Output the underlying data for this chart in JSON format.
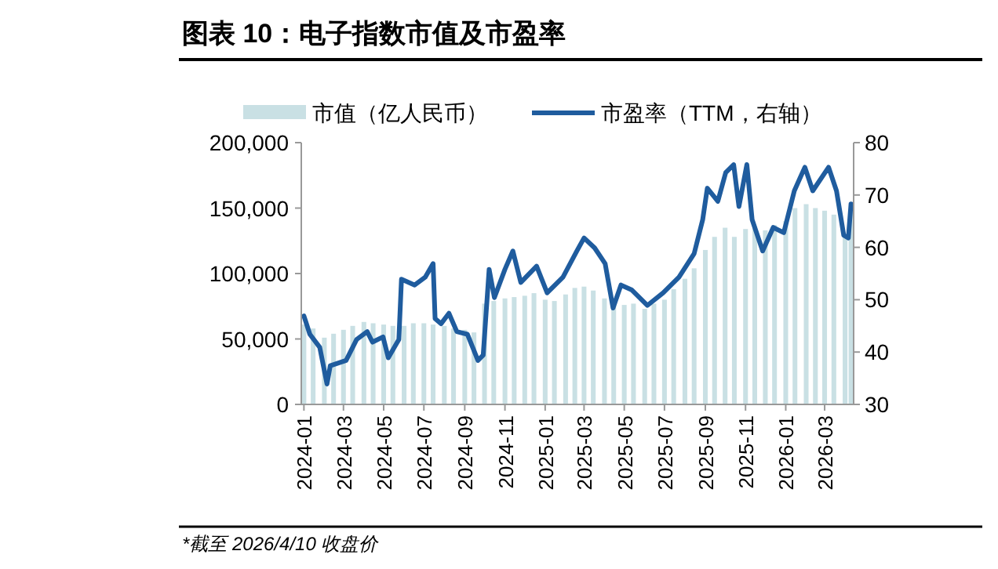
{
  "chart_data": {
    "type": "bar",
    "title": "图表 10：电子指数市值及市盈率",
    "annotations": [
      "*截至 2026/4/10 收盘价"
    ],
    "xlim": [
      "2023-12-28",
      "2026-04-14"
    ],
    "xticks": [
      "2024-01",
      "2024-03",
      "2024-05",
      "2024-07",
      "2024-09",
      "2024-11",
      "2025-01",
      "2025-03",
      "2025-05",
      "2025-07",
      "2025-09",
      "2025-11",
      "2026-01",
      "2026-03"
    ],
    "ylim": [
      0,
      200000
    ],
    "yticks": [
      0,
      {
        "value": 50000,
        "label": "50,000"
      },
      {
        "value": 100000,
        "label": "100,000"
      },
      {
        "value": 150000,
        "label": "150,000"
      },
      {
        "value": 200000,
        "label": "200,000"
      }
    ],
    "y2lim": [
      30,
      80
    ],
    "y2ticks": [
      30,
      40,
      50,
      60,
      70,
      80
    ],
    "legend": "top",
    "series": [
      {
        "name": "市值（亿人民币）",
        "color": "#c9e0e4",
        "x": [
          "2024-01-01",
          "2024-01-15",
          "2024-02-01",
          "2024-02-15",
          "2024-03-01",
          "2024-03-15",
          "2024-04-01",
          "2024-04-15",
          "2024-05-01",
          "2024-05-15",
          "2024-06-01",
          "2024-06-15",
          "2024-07-01",
          "2024-07-15",
          "2024-08-01",
          "2024-08-15",
          "2024-09-01",
          "2024-09-15",
          "2024-10-01",
          "2024-10-15",
          "2024-11-01",
          "2024-11-15",
          "2024-12-01",
          "2024-12-15",
          "2025-01-01",
          "2025-01-15",
          "2025-02-01",
          "2025-02-15",
          "2025-03-01",
          "2025-03-15",
          "2025-04-01",
          "2025-04-15",
          "2025-05-01",
          "2025-05-15",
          "2025-06-01",
          "2025-06-15",
          "2025-07-01",
          "2025-07-15",
          "2025-08-01",
          "2025-08-15",
          "2025-09-01",
          "2025-09-15",
          "2025-10-01",
          "2025-10-15",
          "2025-11-01",
          "2025-11-15",
          "2025-12-01",
          "2025-12-15",
          "2026-01-01",
          "2026-01-15",
          "2026-02-01",
          "2026-02-15",
          "2026-03-01",
          "2026-03-15",
          "2026-04-01",
          "2026-04-10"
        ],
        "values": [
          61000,
          58000,
          51000,
          54000,
          57000,
          60000,
          63000,
          62000,
          61000,
          60000,
          60000,
          62000,
          62000,
          61000,
          60000,
          58000,
          57000,
          55000,
          77000,
          79000,
          81000,
          82000,
          83000,
          85000,
          80000,
          79000,
          84000,
          89000,
          90000,
          87000,
          81000,
          75000,
          76000,
          77000,
          73000,
          77000,
          80000,
          88000,
          96000,
          104000,
          118000,
          128000,
          135000,
          128000,
          134000,
          136000,
          133000,
          137000,
          140000,
          150000,
          153000,
          150000,
          148000,
          145000,
          129000,
          147000
        ]
      },
      {
        "type": "line",
        "name": "市盈率（TTM，右轴）",
        "color": "#1f5c9e",
        "axis": "y2",
        "x": [
          "2024-01-01",
          "2024-01-10",
          "2024-01-25",
          "2024-02-05",
          "2024-02-10",
          "2024-03-05",
          "2024-03-21",
          "2024-04-06",
          "2024-04-14",
          "2024-04-30",
          "2024-05-08",
          "2024-05-24",
          "2024-05-28",
          "2024-06-17",
          "2024-07-03",
          "2024-07-15",
          "2024-07-18",
          "2024-07-27",
          "2024-08-08",
          "2024-08-20",
          "2024-09-05",
          "2024-09-21",
          "2024-09-29",
          "2024-10-08",
          "2024-10-16",
          "2024-11-01",
          "2024-11-13",
          "2024-11-25",
          "2024-12-19",
          "2025-01-04",
          "2025-01-28",
          "2025-02-18",
          "2025-03-01",
          "2025-03-17",
          "2025-04-02",
          "2025-04-14",
          "2025-04-26",
          "2025-05-12",
          "2025-06-05",
          "2025-06-29",
          "2025-07-23",
          "2025-08-15",
          "2025-08-28",
          "2025-09-04",
          "2025-09-20",
          "2025-10-02",
          "2025-10-14",
          "2025-10-22",
          "2025-11-03",
          "2025-11-11",
          "2025-11-27",
          "2025-12-13",
          "2025-12-29",
          "2026-01-14",
          "2026-01-30",
          "2026-02-11",
          "2026-03-07",
          "2026-03-19",
          "2026-03-30",
          "2026-04-06",
          "2026-04-10"
        ],
        "values": [
          46.9,
          43.4,
          40.9,
          33.9,
          37.4,
          38.4,
          42.4,
          43.9,
          41.9,
          42.9,
          38.9,
          42.4,
          53.9,
          52.8,
          54.3,
          56.9,
          46.4,
          45.4,
          47.4,
          43.9,
          43.4,
          38.4,
          39.4,
          55.8,
          50.4,
          55.8,
          59.3,
          53.3,
          56.4,
          51.3,
          54.3,
          59.3,
          61.8,
          59.9,
          56.9,
          48.4,
          52.8,
          51.9,
          48.9,
          51.3,
          54.3,
          58.8,
          65.3,
          71.3,
          68.8,
          74.3,
          75.8,
          67.8,
          75.8,
          65.3,
          59.3,
          63.8,
          62.8,
          70.8,
          75.3,
          70.8,
          75.3,
          70.8,
          62.3,
          61.8,
          68.3
        ]
      }
    ]
  }
}
